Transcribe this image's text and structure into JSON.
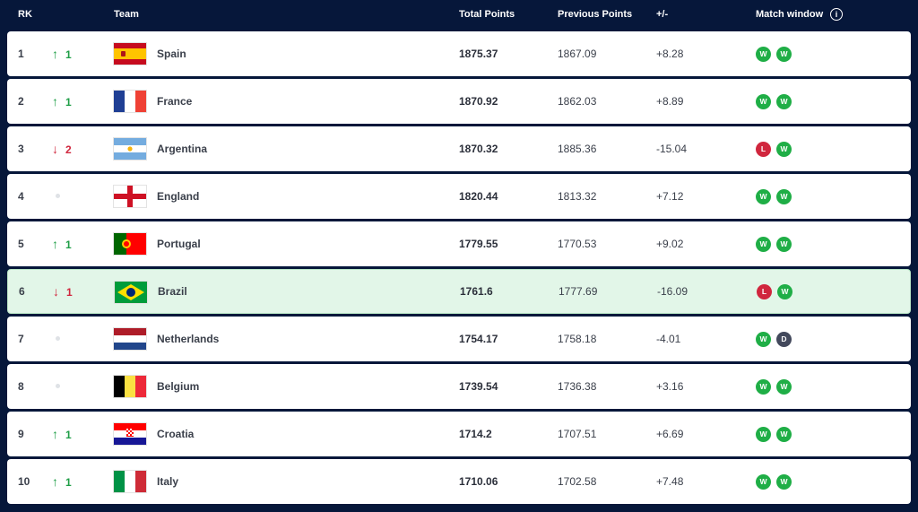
{
  "header": {
    "rk": "RK",
    "team": "Team",
    "total_points": "Total Points",
    "previous_points": "Previous Points",
    "diff": "+/-",
    "match_window": "Match window",
    "info_icon": "info-icon"
  },
  "colors": {
    "background": "#06173a",
    "win": "#1fae46",
    "loss": "#d0263d",
    "draw": "#43495c",
    "highlight": "#e2f6e8"
  },
  "rows": [
    {
      "rank": "1",
      "move": "up",
      "move_value": "1",
      "team": "Spain",
      "flag": "spain",
      "total": "1875.37",
      "previous": "1867.09",
      "diff": "+8.28",
      "results": [
        "W",
        "W"
      ]
    },
    {
      "rank": "2",
      "move": "up",
      "move_value": "1",
      "team": "France",
      "flag": "france",
      "total": "1870.92",
      "previous": "1862.03",
      "diff": "+8.89",
      "results": [
        "W",
        "W"
      ]
    },
    {
      "rank": "3",
      "move": "down",
      "move_value": "2",
      "team": "Argentina",
      "flag": "argentina",
      "total": "1870.32",
      "previous": "1885.36",
      "diff": "-15.04",
      "results": [
        "L",
        "W"
      ]
    },
    {
      "rank": "4",
      "move": "none",
      "move_value": "",
      "team": "England",
      "flag": "england",
      "total": "1820.44",
      "previous": "1813.32",
      "diff": "+7.12",
      "results": [
        "W",
        "W"
      ]
    },
    {
      "rank": "5",
      "move": "up",
      "move_value": "1",
      "team": "Portugal",
      "flag": "portugal",
      "total": "1779.55",
      "previous": "1770.53",
      "diff": "+9.02",
      "results": [
        "W",
        "W"
      ]
    },
    {
      "rank": "6",
      "move": "down",
      "move_value": "1",
      "team": "Brazil",
      "flag": "brazil",
      "total": "1761.6",
      "previous": "1777.69",
      "diff": "-16.09",
      "results": [
        "L",
        "W"
      ],
      "highlight": true
    },
    {
      "rank": "7",
      "move": "none",
      "move_value": "",
      "team": "Netherlands",
      "flag": "netherlands",
      "total": "1754.17",
      "previous": "1758.18",
      "diff": "-4.01",
      "results": [
        "W",
        "D"
      ]
    },
    {
      "rank": "8",
      "move": "none",
      "move_value": "",
      "team": "Belgium",
      "flag": "belgium",
      "total": "1739.54",
      "previous": "1736.38",
      "diff": "+3.16",
      "results": [
        "W",
        "W"
      ]
    },
    {
      "rank": "9",
      "move": "up",
      "move_value": "1",
      "team": "Croatia",
      "flag": "croatia",
      "total": "1714.2",
      "previous": "1707.51",
      "diff": "+6.69",
      "results": [
        "W",
        "W"
      ]
    },
    {
      "rank": "10",
      "move": "up",
      "move_value": "1",
      "team": "Italy",
      "flag": "italy",
      "total": "1710.06",
      "previous": "1702.58",
      "diff": "+7.48",
      "results": [
        "W",
        "W"
      ]
    }
  ]
}
